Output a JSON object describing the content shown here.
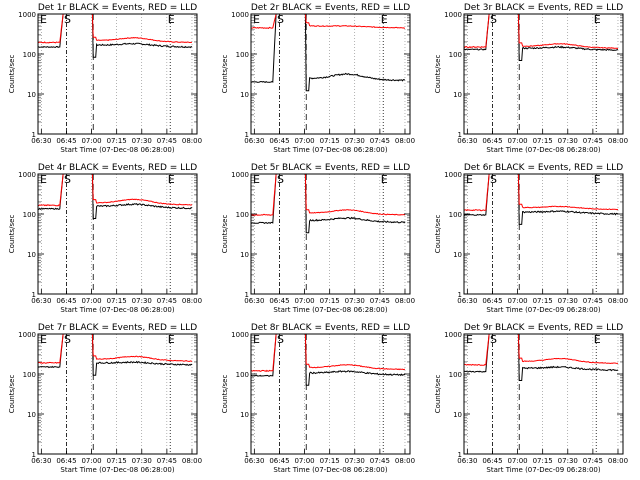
{
  "chart_data": [
    {
      "type": "line",
      "title": "Det 1r BLACK = Events, RED = LLD",
      "black_base": 150,
      "red_base": 195,
      "black_mid": 170,
      "red_mid": 240,
      "black_pre": 150,
      "red_pre": 195,
      "xlabel": "Start Time (07-Dec-08 06:28:00)",
      "ylabel": "Counts/sec",
      "x_ticks": [
        "06:30",
        "06:45",
        "07:00",
        "07:15",
        "07:30",
        "07:45",
        "08:00"
      ],
      "y_ticks": [
        "1",
        "10",
        "100",
        "1000"
      ],
      "markers": [
        "S",
        "E"
      ],
      "series": [
        {
          "name": "BLACK = Events",
          "color": "#000000"
        },
        {
          "name": "RED = LLD",
          "color": "#ff0000"
        }
      ]
    },
    {
      "type": "line",
      "title": "Det 2r BLACK = Events, RED = LLD",
      "black_base": 22,
      "red_base": 450,
      "black_mid": 30,
      "red_mid": 470,
      "black_pre": 20,
      "red_pre": 450,
      "xlabel": "Start Time (07-Dec-08 06:28:00)",
      "ylabel": "Counts/sec",
      "x_ticks": [
        "06:30",
        "06:45",
        "07:00",
        "07:15",
        "07:30",
        "07:45",
        "08:00"
      ],
      "y_ticks": [
        "1",
        "10",
        "100",
        "1000"
      ],
      "markers": [
        "S",
        "E"
      ],
      "series": [
        {
          "name": "BLACK = Events",
          "color": "#000000"
        },
        {
          "name": "RED = LLD",
          "color": "#ff0000"
        }
      ]
    },
    {
      "type": "line",
      "title": "Det 3r BLACK = Events, RED = LLD",
      "black_base": 125,
      "red_base": 140,
      "black_mid": 140,
      "red_mid": 170,
      "black_pre": 130,
      "red_pre": 150,
      "xlabel": "Start Time (07-Dec-08 06:28:00)",
      "ylabel": "Counts/sec",
      "x_ticks": [
        "06:30",
        "06:45",
        "07:00",
        "07:15",
        "07:30",
        "07:45",
        "08:00"
      ],
      "y_ticks": [
        "1",
        "10",
        "100",
        "1000"
      ],
      "markers": [
        "S",
        "E"
      ],
      "series": [
        {
          "name": "BLACK = Events",
          "color": "#000000"
        },
        {
          "name": "RED = LLD",
          "color": "#ff0000"
        }
      ]
    },
    {
      "type": "line",
      "title": "Det 4r BLACK = Events, RED = LLD",
      "black_base": 140,
      "red_base": 170,
      "black_mid": 165,
      "red_mid": 220,
      "black_pre": 135,
      "red_pre": 165,
      "xlabel": "Start Time (07-Dec-08 06:28:00)",
      "ylabel": "Counts/sec",
      "x_ticks": [
        "06:30",
        "06:45",
        "07:00",
        "07:15",
        "07:30",
        "07:45",
        "08:00"
      ],
      "y_ticks": [
        "1",
        "10",
        "100",
        "1000"
      ],
      "markers": [
        "S",
        "E"
      ],
      "series": [
        {
          "name": "BLACK = Events",
          "color": "#000000"
        },
        {
          "name": "RED = LLD",
          "color": "#ff0000"
        }
      ]
    },
    {
      "type": "line",
      "title": "Det 5r BLACK = Events, RED = LLD",
      "black_base": 62,
      "red_base": 95,
      "black_mid": 75,
      "red_mid": 120,
      "black_pre": 60,
      "red_pre": 95,
      "xlabel": "Start Time (07-Dec-08 06:28:00)",
      "ylabel": "Counts/sec",
      "x_ticks": [
        "06:30",
        "06:45",
        "07:00",
        "07:15",
        "07:30",
        "07:45",
        "08:00"
      ],
      "y_ticks": [
        "1",
        "10",
        "100",
        "1000"
      ],
      "markers": [
        "S",
        "E"
      ],
      "series": [
        {
          "name": "BLACK = Events",
          "color": "#000000"
        },
        {
          "name": "RED = LLD",
          "color": "#ff0000"
        }
      ]
    },
    {
      "type": "line",
      "title": "Det 6r BLACK = Events, RED = LLD",
      "black_base": 100,
      "red_base": 130,
      "black_mid": 110,
      "red_mid": 145,
      "black_pre": 95,
      "red_pre": 125,
      "xlabel": "Start Time (07-Dec-09 06:28:00)",
      "ylabel": "Counts/sec",
      "x_ticks": [
        "06:30",
        "06:45",
        "07:00",
        "07:15",
        "07:30",
        "07:45",
        "08:00"
      ],
      "y_ticks": [
        "1",
        "10",
        "100",
        "1000"
      ],
      "markers": [
        "S",
        "E"
      ],
      "series": [
        {
          "name": "BLACK = Events",
          "color": "#000000"
        },
        {
          "name": "RED = LLD",
          "color": "#ff0000"
        }
      ]
    },
    {
      "type": "line",
      "title": "Det 7r BLACK = Events, RED = LLD",
      "black_base": 170,
      "red_base": 210,
      "black_mid": 185,
      "red_mid": 260,
      "black_pre": 150,
      "red_pre": 190,
      "xlabel": "Start Time (07-Dec-08 06:28:00)",
      "ylabel": "Counts/sec",
      "x_ticks": [
        "06:30",
        "06:45",
        "07:00",
        "07:15",
        "07:30",
        "07:45",
        "08:00"
      ],
      "y_ticks": [
        "1",
        "10",
        "100",
        "1000"
      ],
      "markers": [
        "S",
        "E"
      ],
      "series": [
        {
          "name": "BLACK = Events",
          "color": "#000000"
        },
        {
          "name": "RED = LLD",
          "color": "#ff0000"
        }
      ]
    },
    {
      "type": "line",
      "title": "Det 8r BLACK = Events, RED = LLD",
      "black_base": 95,
      "red_base": 130,
      "black_mid": 110,
      "red_mid": 160,
      "black_pre": 90,
      "red_pre": 120,
      "xlabel": "Start Time (07-Dec-08 06:28:00)",
      "ylabel": "Counts/sec",
      "x_ticks": [
        "06:30",
        "06:45",
        "07:00",
        "07:15",
        "07:30",
        "07:45",
        "08:00"
      ],
      "y_ticks": [
        "1",
        "10",
        "100",
        "1000"
      ],
      "markers": [
        "S",
        "E"
      ],
      "series": [
        {
          "name": "BLACK = Events",
          "color": "#000000"
        },
        {
          "name": "RED = LLD",
          "color": "#ff0000"
        }
      ]
    },
    {
      "type": "line",
      "title": "Det 9r BLACK = Events, RED = LLD",
      "black_base": 125,
      "red_base": 185,
      "black_mid": 140,
      "red_mid": 230,
      "black_pre": 115,
      "red_pre": 170,
      "xlabel": "Start Time (07-Dec-09 06:28:00)",
      "ylabel": "Counts/sec",
      "x_ticks": [
        "06:30",
        "06:45",
        "07:00",
        "07:15",
        "07:30",
        "07:45",
        "08:00"
      ],
      "y_ticks": [
        "1",
        "10",
        "100",
        "1000"
      ],
      "markers": [
        "S",
        "E"
      ],
      "series": [
        {
          "name": "BLACK = Events",
          "color": "#000000"
        },
        {
          "name": "RED = LLD",
          "color": "#ff0000"
        }
      ]
    }
  ]
}
